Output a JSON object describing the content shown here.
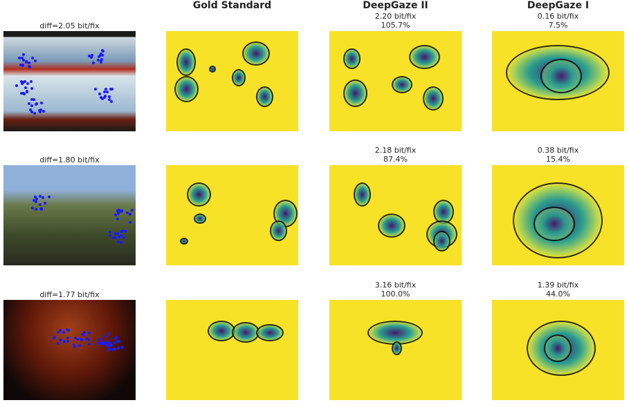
{
  "columns": {
    "gold": "Gold Standard",
    "dg2": "DeepGaze II",
    "dg1": "DeepGaze I"
  },
  "rows": [
    {
      "diff": "diff=2.05 bit/fix",
      "dg2": {
        "bits": "2.20 bit/fix",
        "pct": "105.7%"
      },
      "dg1": {
        "bits": "0.16 bit/fix",
        "pct": "7.5%"
      }
    },
    {
      "diff": "diff=1.80 bit/fix",
      "dg2": {
        "bits": "2.18 bit/fix",
        "pct": "87.4%"
      },
      "dg1": {
        "bits": "0.38 bit/fix",
        "pct": "15.4%"
      }
    },
    {
      "diff": "diff=1.77 bit/fix",
      "dg2": {
        "bits": "3.16 bit/fix",
        "pct": "100.0%"
      },
      "dg1": {
        "bits": "1.39 bit/fix",
        "pct": "44.0%"
      }
    }
  ],
  "colors": {
    "map_low": "#f7e227",
    "map_mid": "#2a9d8f",
    "map_high": "#46186e",
    "fixation": "#1a1aff"
  }
}
